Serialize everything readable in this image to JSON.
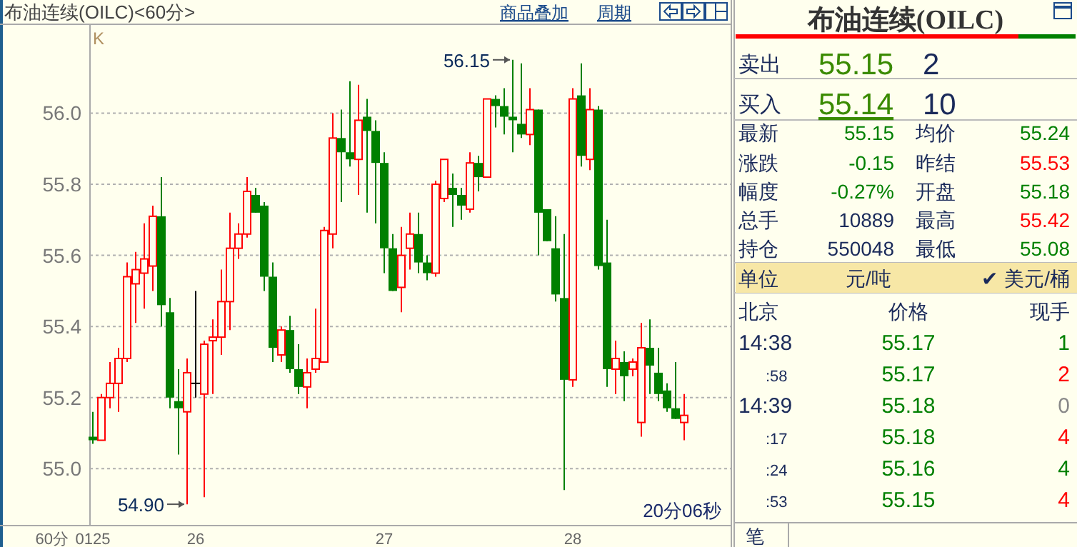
{
  "chart_data": [
    {
      "type": "candlestick",
      "title": "布油连续(OILC)<60分>",
      "categories": [
        "0125",
        null,
        null,
        null,
        null,
        null,
        null,
        null,
        null,
        null,
        null,
        null,
        "26",
        null,
        null,
        null,
        null,
        null,
        null,
        null,
        null,
        null,
        null,
        null,
        null,
        null,
        null,
        null,
        null,
        null,
        null,
        null,
        null,
        null,
        "27",
        null,
        null,
        null,
        null,
        null,
        null,
        null,
        null,
        null,
        null,
        null,
        null,
        null,
        null,
        null,
        null,
        null,
        null,
        null,
        null,
        null,
        "28",
        null,
        null,
        null,
        null,
        null,
        null,
        null,
        null,
        null,
        null,
        null,
        null,
        null
      ],
      "ohlc": [
        [
          55.09,
          55.16,
          55.07,
          55.08
        ],
        [
          55.08,
          55.21,
          55.08,
          55.2
        ],
        [
          55.2,
          55.3,
          55.17,
          55.24
        ],
        [
          55.24,
          55.34,
          55.16,
          55.31
        ],
        [
          55.31,
          55.58,
          55.3,
          55.54
        ],
        [
          55.52,
          55.61,
          55.41,
          55.56
        ],
        [
          55.55,
          55.69,
          55.45,
          55.59
        ],
        [
          55.57,
          55.74,
          55.5,
          55.71
        ],
        [
          55.71,
          55.82,
          55.4,
          55.46
        ],
        [
          55.44,
          55.48,
          55.17,
          55.2
        ],
        [
          55.19,
          55.28,
          55.04,
          55.17
        ],
        [
          55.16,
          55.31,
          54.9,
          55.27
        ],
        [
          55.24,
          55.5,
          55.2,
          55.24
        ],
        [
          55.21,
          55.36,
          54.92,
          55.35
        ],
        [
          55.36,
          55.42,
          55.21,
          55.37
        ],
        [
          55.37,
          55.56,
          55.32,
          55.47
        ],
        [
          55.47,
          55.72,
          55.39,
          55.62
        ],
        [
          55.62,
          55.69,
          55.59,
          55.66
        ],
        [
          55.66,
          55.82,
          55.65,
          55.78
        ],
        [
          55.77,
          55.79,
          55.72,
          55.72
        ],
        [
          55.74,
          55.75,
          55.5,
          55.54
        ],
        [
          55.54,
          55.58,
          55.3,
          55.34
        ],
        [
          55.32,
          55.4,
          55.3,
          55.39
        ],
        [
          55.39,
          55.43,
          55.27,
          55.28
        ],
        [
          55.28,
          55.35,
          55.21,
          55.23
        ],
        [
          55.23,
          55.31,
          55.17,
          55.27
        ],
        [
          55.28,
          55.45,
          55.27,
          55.31
        ],
        [
          55.3,
          55.68,
          55.3,
          55.67
        ],
        [
          55.66,
          56.0,
          55.62,
          55.93
        ],
        [
          55.93,
          56.01,
          55.75,
          55.89
        ],
        [
          55.89,
          56.09,
          55.85,
          55.87
        ],
        [
          55.87,
          56.08,
          55.77,
          55.98
        ],
        [
          55.99,
          56.04,
          55.72,
          55.95
        ],
        [
          55.95,
          55.98,
          55.69,
          55.86
        ],
        [
          55.86,
          55.89,
          55.55,
          55.62
        ],
        [
          55.62,
          55.66,
          55.5,
          55.5
        ],
        [
          55.51,
          55.68,
          55.44,
          55.6
        ],
        [
          55.62,
          55.72,
          55.56,
          55.66
        ],
        [
          55.66,
          55.72,
          55.55,
          55.58
        ],
        [
          55.58,
          55.6,
          55.53,
          55.55
        ],
        [
          55.55,
          55.81,
          55.54,
          55.8
        ],
        [
          55.76,
          55.87,
          55.75,
          55.87
        ],
        [
          55.79,
          55.83,
          55.68,
          55.77
        ],
        [
          55.77,
          55.79,
          55.7,
          55.74
        ],
        [
          55.73,
          55.89,
          55.72,
          55.86
        ],
        [
          55.86,
          55.88,
          55.78,
          55.82
        ],
        [
          55.82,
          56.04,
          55.82,
          56.04
        ],
        [
          56.04,
          56.05,
          55.96,
          56.02
        ],
        [
          56.02,
          56.07,
          55.94,
          55.99
        ],
        [
          55.99,
          56.15,
          55.89,
          55.98
        ],
        [
          55.97,
          56.14,
          55.93,
          55.94
        ],
        [
          55.94,
          56.07,
          55.91,
          56.01
        ],
        [
          56.01,
          56.01,
          55.6,
          55.72
        ],
        [
          55.73,
          55.73,
          55.64,
          55.64
        ],
        [
          55.62,
          55.71,
          55.47,
          55.49
        ],
        [
          55.48,
          55.66,
          54.94,
          55.25
        ],
        [
          55.25,
          56.07,
          55.23,
          56.04
        ],
        [
          56.05,
          56.14,
          55.85,
          55.88
        ],
        [
          55.87,
          56.07,
          55.84,
          56.01
        ],
        [
          56.01,
          56.02,
          55.56,
          55.57
        ],
        [
          55.58,
          55.7,
          55.23,
          55.28
        ],
        [
          55.28,
          55.36,
          55.21,
          55.31
        ],
        [
          55.3,
          55.33,
          55.19,
          55.26
        ],
        [
          55.28,
          55.31,
          55.26,
          55.3
        ],
        [
          55.13,
          55.41,
          55.09,
          55.34
        ],
        [
          55.34,
          55.42,
          55.21,
          55.29
        ],
        [
          55.27,
          55.34,
          55.19,
          55.21
        ],
        [
          55.22,
          55.24,
          55.16,
          55.17
        ],
        [
          55.17,
          55.3,
          55.14,
          55.14
        ],
        [
          55.13,
          55.21,
          55.08,
          55.15
        ]
      ],
      "ylim": [
        54.84,
        56.25
      ],
      "yticks": [
        {
          "value": 55,
          "label": "55.0"
        },
        55.2,
        55.4,
        55.6,
        55.8,
        {
          "value": 56,
          "label": "56.0"
        }
      ],
      "grid": "y",
      "annotations": [
        "K",
        "56.15",
        "54.90",
        "20分06秒",
        "60分",
        "商品叠加",
        "周期"
      ]
    },
    {
      "type": "other",
      "title": "布油连续(OILC)",
      "annotations": [
        "卖出",
        "55.15",
        "2",
        "买入",
        "55.14",
        "10",
        "最新",
        "55.15",
        "均价",
        "55.24",
        "涨跌",
        "-0.15",
        "昨结",
        "55.53",
        "幅度",
        "-0.27%",
        "开盘",
        "55.18",
        "总手",
        "10889",
        "最高",
        "55.42",
        "持仓",
        "550048",
        "最低",
        "55.08",
        "单位",
        "元/吨",
        "✔ 美元/桶",
        "北京",
        "价格",
        "现手",
        "14:38",
        "55.17",
        "1",
        ":58",
        "55.17",
        "2",
        "14:39",
        "55.18",
        "0",
        ":17",
        "55.18",
        "4",
        ":24",
        "55.16",
        "4",
        ":53",
        "55.15",
        "4",
        "笔"
      ]
    }
  ]
}
